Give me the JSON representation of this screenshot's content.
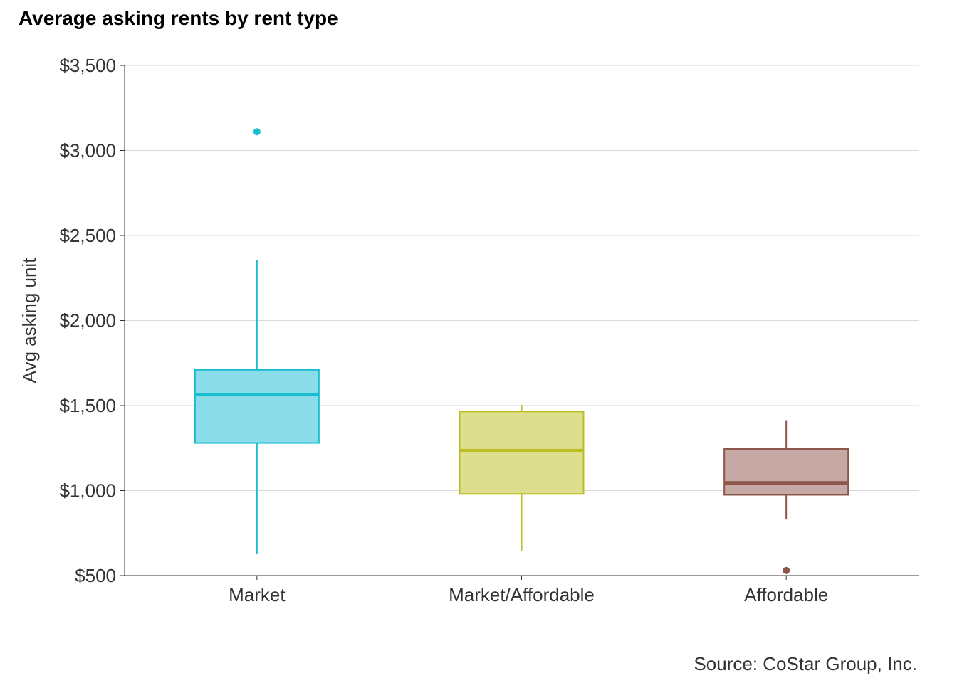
{
  "chart_data": {
    "type": "box",
    "title": "Average asking rents by rent type",
    "xlabel": "",
    "ylabel": "Avg asking unit",
    "source": "Source: CoStar Group, Inc.",
    "ylim": [
      500,
      3500
    ],
    "yticks": [
      500,
      1000,
      1500,
      2000,
      2500,
      3000,
      3500
    ],
    "ytick_labels": [
      "$500",
      "$1,000",
      "$1,500",
      "$2,000",
      "$2,500",
      "$3,000",
      "$3,500"
    ],
    "grid": "horizontal",
    "categories": [
      "Market",
      "Market/Affordable",
      "Affordable"
    ],
    "boxes": [
      {
        "category": "Market",
        "whisker_low": 630,
        "q1": 1280,
        "median": 1565,
        "q3": 1710,
        "whisker_high": 2355,
        "outliers": [
          3110
        ],
        "color": "#17becf",
        "fill": "#8adde8"
      },
      {
        "category": "Market/Affordable",
        "whisker_low": 645,
        "q1": 980,
        "median": 1235,
        "q3": 1465,
        "whisker_high": 1505,
        "outliers": [],
        "color": "#bcbd22",
        "fill": "#dede8f"
      },
      {
        "category": "Affordable",
        "whisker_low": 830,
        "q1": 975,
        "median": 1045,
        "q3": 1245,
        "whisker_high": 1410,
        "outliers": [
          530
        ],
        "color": "#8c564b",
        "fill": "#c6a9a5"
      }
    ]
  }
}
